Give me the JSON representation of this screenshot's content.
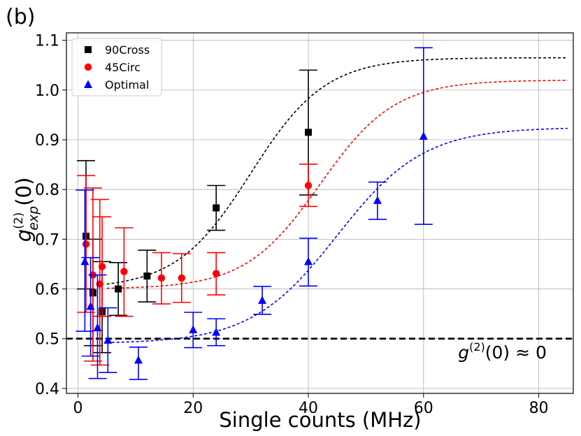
{
  "chart_data": {
    "type": "scatter",
    "panel_label": "(b)",
    "xlabel": "Single counts (MHz)",
    "ylabel_main": "g",
    "ylabel_sup": "(2)",
    "ylabel_sub": "exp",
    "ylabel_arg": "(0)",
    "annotation": {
      "g": "g",
      "sup": "(2)",
      "rest": "(0) ≈ 0",
      "x": 66,
      "y": 0.46
    },
    "xlim": [
      -2,
      86
    ],
    "ylim": [
      0.39,
      1.115
    ],
    "xticks": [
      0,
      20,
      40,
      60,
      80
    ],
    "yticks": [
      0.4,
      0.5,
      0.6,
      0.7,
      0.8,
      0.9,
      1.0,
      1.1
    ],
    "ytick_labels": [
      "0.4",
      "0.5",
      "0.6",
      "0.7",
      "0.8",
      "0.9",
      "1.0",
      "1.1"
    ],
    "grid": true,
    "legend_position": "top-left",
    "reference_line": {
      "y": 0.5,
      "style": "dashed",
      "color": "#000000"
    },
    "series": [
      {
        "name": "90Cross",
        "marker": "square",
        "color": "#000000",
        "points": [
          {
            "x": 1.4,
            "y": 0.706,
            "yerr_low": 0.6,
            "yerr_high": 0.858
          },
          {
            "x": 2.6,
            "y": 0.592,
            "yerr_low": 0.486,
            "yerr_high": 0.7
          },
          {
            "x": 4.2,
            "y": 0.554,
            "yerr_low": 0.472,
            "yerr_high": 0.655
          },
          {
            "x": 7.0,
            "y": 0.6,
            "yerr_low": 0.547,
            "yerr_high": 0.653
          },
          {
            "x": 12.0,
            "y": 0.626,
            "yerr_low": 0.574,
            "yerr_high": 0.678
          },
          {
            "x": 24.0,
            "y": 0.763,
            "yerr_low": 0.718,
            "yerr_high": 0.808
          },
          {
            "x": 40.0,
            "y": 0.915,
            "yerr_low": 0.789,
            "yerr_high": 1.04
          }
        ],
        "fit": {
          "color": "#000000",
          "x_start": 5,
          "x_end": 85,
          "baseline": 0.6,
          "amplitude": 0.465,
          "midpoint": 30,
          "width": 6.5
        }
      },
      {
        "name": "45Circ",
        "marker": "circle",
        "color": "#ff0000",
        "points": [
          {
            "x": 1.4,
            "y": 0.69,
            "yerr_low": 0.553,
            "yerr_high": 0.828
          },
          {
            "x": 2.6,
            "y": 0.628,
            "yerr_low": 0.455,
            "yerr_high": 0.803
          },
          {
            "x": 3.8,
            "y": 0.61,
            "yerr_low": 0.447,
            "yerr_high": 0.78
          },
          {
            "x": 4.2,
            "y": 0.645,
            "yerr_low": 0.545,
            "yerr_high": 0.745
          },
          {
            "x": 8.0,
            "y": 0.635,
            "yerr_low": 0.545,
            "yerr_high": 0.723
          },
          {
            "x": 14.5,
            "y": 0.622,
            "yerr_low": 0.57,
            "yerr_high": 0.673
          },
          {
            "x": 18.0,
            "y": 0.622,
            "yerr_low": 0.573,
            "yerr_high": 0.671
          },
          {
            "x": 24.0,
            "y": 0.631,
            "yerr_low": 0.588,
            "yerr_high": 0.673
          },
          {
            "x": 40.0,
            "y": 0.808,
            "yerr_low": 0.766,
            "yerr_high": 0.851
          }
        ],
        "fit": {
          "color": "#ff0000",
          "x_start": 5,
          "x_end": 85,
          "baseline": 0.6,
          "amplitude": 0.42,
          "midpoint": 42,
          "width": 6.5
        }
      },
      {
        "name": "Optimal",
        "marker": "triangle",
        "color": "#0000ff",
        "points": [
          {
            "x": 1.2,
            "y": 0.655,
            "yerr_low": 0.515,
            "yerr_high": 0.799
          },
          {
            "x": 2.2,
            "y": 0.565,
            "yerr_low": 0.465,
            "yerr_high": 0.663
          },
          {
            "x": 3.4,
            "y": 0.522,
            "yerr_low": 0.42,
            "yerr_high": 0.628
          },
          {
            "x": 5.2,
            "y": 0.497,
            "yerr_low": 0.432,
            "yerr_high": 0.562
          },
          {
            "x": 10.5,
            "y": 0.457,
            "yerr_low": 0.418,
            "yerr_high": 0.483
          },
          {
            "x": 20.0,
            "y": 0.518,
            "yerr_low": 0.482,
            "yerr_high": 0.553
          },
          {
            "x": 24.0,
            "y": 0.513,
            "yerr_low": 0.486,
            "yerr_high": 0.54
          },
          {
            "x": 32.0,
            "y": 0.577,
            "yerr_low": 0.549,
            "yerr_high": 0.605
          },
          {
            "x": 40.0,
            "y": 0.655,
            "yerr_low": 0.606,
            "yerr_high": 0.702
          },
          {
            "x": 52.0,
            "y": 0.778,
            "yerr_low": 0.74,
            "yerr_high": 0.815
          },
          {
            "x": 60.0,
            "y": 0.907,
            "yerr_low": 0.73,
            "yerr_high": 1.085
          }
        ],
        "fit": {
          "color": "#0000ff",
          "x_start": 5,
          "x_end": 85,
          "baseline": 0.49,
          "amplitude": 0.435,
          "midpoint": 45,
          "width": 7.5
        }
      }
    ]
  }
}
